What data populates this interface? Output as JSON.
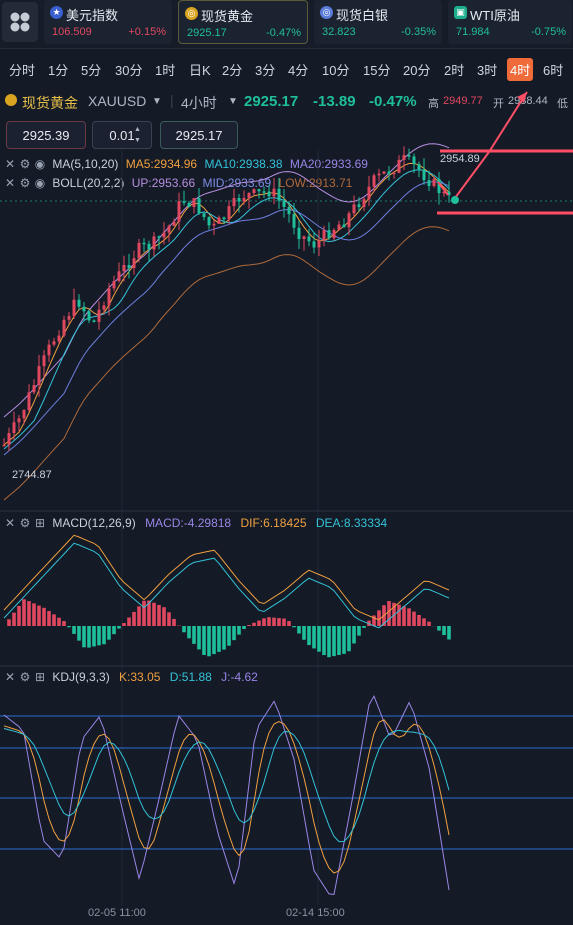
{
  "tickers": [
    {
      "name": "美元指数",
      "price": "106.509",
      "change": "+0.15%",
      "price_color": "#e0485f",
      "change_color": "#e0485f",
      "icon": "us-flag-icon"
    },
    {
      "name": "现货黄金",
      "price": "2925.17",
      "change": "-0.47%",
      "price_color": "#1fbf9c",
      "change_color": "#1fbf9c",
      "icon": "gold-coin-icon"
    },
    {
      "name": "现货白银",
      "price": "32.823",
      "change": "-0.35%",
      "price_color": "#1fbf9c",
      "change_color": "#1fbf9c",
      "icon": "silver-coin-icon"
    },
    {
      "name": "WTI原油",
      "price": "71.984",
      "change": "-0.75%",
      "price_color": "#1fbf9c",
      "change_color": "#1fbf9c",
      "icon": "oil-icon"
    }
  ],
  "timeframes": [
    "分时",
    "1分",
    "5分",
    "30分",
    "1时",
    "日K",
    "2分",
    "3分",
    "4分",
    "10分",
    "15分",
    "20分",
    "2时",
    "3时",
    "4时",
    "6时"
  ],
  "active_timeframe_index": 14,
  "symbol": {
    "name": "现货黄金",
    "code": "XAUUSD",
    "period": "4小时",
    "price": "2925.17",
    "change": "-13.89",
    "change_pct": "-0.47%",
    "high_label": "高",
    "high": "2949.77",
    "open_label": "开",
    "open": "2938.44",
    "low_label": "低"
  },
  "order": {
    "sell_price": "2925.39",
    "quantity": "0.01",
    "buy_price": "2925.17"
  },
  "indicators": {
    "ma": {
      "label": "MA(5,10,20)",
      "ma5": "MA5:2934.96",
      "ma10": "MA10:2938.38",
      "ma20": "MA20:2933.69"
    },
    "boll": {
      "label": "BOLL(20,2,2)",
      "up": "UP:2953.66",
      "mid": "MID:2933.69",
      "low": "LOW:2913.71"
    },
    "macd": {
      "label": "MACD(12,26,9)",
      "macd": "MACD:-4.29818",
      "dif": "DIF:6.18425",
      "dea": "DEA:8.33334"
    },
    "kdj": {
      "label": "KDJ(9,3,3)",
      "k": "K:33.05",
      "d": "D:51.88",
      "j": "J:-4.62"
    }
  },
  "chart_labels": {
    "max_price": "2954.89",
    "min_price": "2744.87",
    "date1": "02-05 11:00",
    "date2": "02-14 15:00"
  },
  "colors": {
    "up": "#e0485f",
    "down": "#1fbf9c",
    "ma5": "#f0a040",
    "ma10": "#34c3d8",
    "ma20": "#9a86e6",
    "boll_up": "#b78fe0",
    "boll_low": "#b06a3a",
    "accent": "#f06b3a",
    "annotation": "#ff4f66"
  },
  "chart_data": {
    "type": "candlestick",
    "title": "现货黄金 XAUUSD 4小时",
    "price_range": [
      2744.87,
      2954.89
    ],
    "x_labels": [
      "02-05 11:00",
      "02-14 15:00"
    ],
    "last_close": 2925.17,
    "series": [
      {
        "name": "MA5",
        "last": 2934.96
      },
      {
        "name": "MA10",
        "last": 2938.38
      },
      {
        "name": "MA20",
        "last": 2933.69
      },
      {
        "name": "BOLL UP",
        "last": 2953.66
      },
      {
        "name": "BOLL MID",
        "last": 2933.69
      },
      {
        "name": "BOLL LOW",
        "last": 2913.71
      },
      {
        "name": "MACD",
        "last": -4.29818
      },
      {
        "name": "DIF",
        "last": 6.18425
      },
      {
        "name": "DEA",
        "last": 8.33334
      },
      {
        "name": "K",
        "last": 33.05
      },
      {
        "name": "D",
        "last": 51.88
      },
      {
        "name": "J",
        "last": -4.62
      }
    ]
  }
}
